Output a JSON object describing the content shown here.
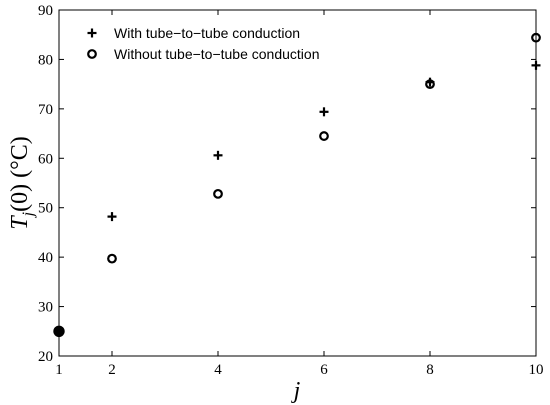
{
  "chart_data": {
    "type": "scatter",
    "title": "",
    "xlabel": "j",
    "ylabel": "T_j(0)  (°C)",
    "xlim": [
      1,
      10
    ],
    "ylim": [
      20,
      90
    ],
    "xticks": [
      1,
      2,
      4,
      6,
      8,
      10
    ],
    "yticks": [
      20,
      30,
      40,
      50,
      60,
      70,
      80,
      90
    ],
    "grid": false,
    "legend": "top-left",
    "series": [
      {
        "name": "With tube−to−tube conduction",
        "marker": "plus",
        "color": "#000000",
        "x": [
          2,
          4,
          6,
          8,
          10
        ],
        "y": [
          48.2,
          60.6,
          69.4,
          75.4,
          78.8
        ]
      },
      {
        "name": "Without tube−to−tube conduction",
        "marker": "circle-open",
        "color": "#000000",
        "x": [
          2,
          4,
          6,
          8,
          10
        ],
        "y": [
          39.7,
          52.8,
          64.5,
          75.0,
          84.4
        ]
      }
    ],
    "extra_points": [
      {
        "x": 1,
        "y": 25,
        "marker": "circle-filled",
        "color": "#000000"
      }
    ]
  }
}
